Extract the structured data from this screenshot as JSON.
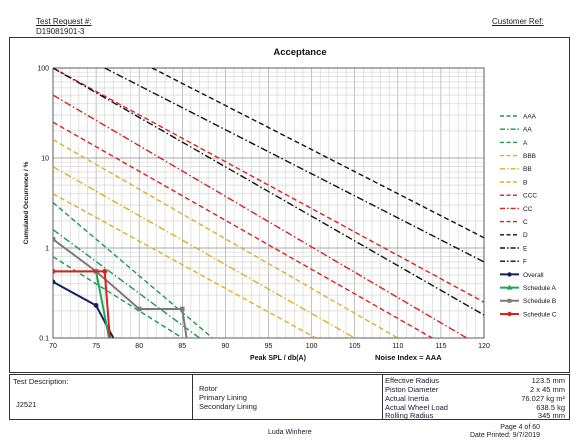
{
  "header": {
    "test_request_label": "Test Request #:",
    "test_request_value": "D19081901-3",
    "customer_ref_label": "Customer Ref:"
  },
  "chart_data": {
    "type": "line",
    "title": "Acceptance",
    "xlabel": "Peak SPL / db(A)",
    "ylabel": "Cumulated Occurrence / %",
    "xlim": [
      70,
      120
    ],
    "ylim": [
      0.1,
      100
    ],
    "y_scale": "log",
    "x_ticks": [
      70,
      75,
      80,
      85,
      90,
      95,
      100,
      105,
      110,
      115,
      120
    ],
    "y_tick_labels": [
      "100",
      "10",
      "1",
      "0.1"
    ],
    "grid": true,
    "legend_position": "right",
    "noise_index": "Noise Index = AAA",
    "limit_lines": [
      {
        "name": "AAA",
        "color": "#1a9a4a",
        "style": "dash",
        "x": [
          70,
          88.5
        ],
        "y": [
          3.2,
          0.1
        ]
      },
      {
        "name": "AA",
        "color": "#1a9a4a",
        "style": "dashdot",
        "x": [
          70,
          87
        ],
        "y": [
          1.6,
          0.1
        ]
      },
      {
        "name": "A",
        "color": "#1a9a4a",
        "style": "dash",
        "x": [
          70,
          85
        ],
        "y": [
          0.8,
          0.1
        ]
      },
      {
        "name": "BBB",
        "color": "#e0b020",
        "style": "dash",
        "x": [
          70,
          110
        ],
        "y": [
          16,
          0.1
        ]
      },
      {
        "name": "BB",
        "color": "#e0b020",
        "style": "dashdot",
        "x": [
          70,
          105
        ],
        "y": [
          8,
          0.1
        ]
      },
      {
        "name": "B",
        "color": "#e0b020",
        "style": "dash",
        "x": [
          70,
          100.5
        ],
        "y": [
          4,
          0.1
        ]
      },
      {
        "name": "CCC",
        "color": "#dd1f1f",
        "style": "dash",
        "x": [
          70,
          120
        ],
        "y": [
          100,
          0.25
        ]
      },
      {
        "name": "CC",
        "color": "#dd1f1f",
        "style": "dashdot",
        "x": [
          70,
          118
        ],
        "y": [
          50,
          0.1
        ]
      },
      {
        "name": "C",
        "color": "#dd1f1f",
        "style": "dash",
        "x": [
          70,
          114
        ],
        "y": [
          25,
          0.1
        ]
      },
      {
        "name": "D",
        "color": "#111111",
        "style": "dash",
        "x": [
          81.5,
          120
        ],
        "y": [
          100,
          1.3
        ]
      },
      {
        "name": "E",
        "color": "#111111",
        "style": "dashdot",
        "x": [
          76,
          120
        ],
        "y": [
          100,
          0.7
        ]
      },
      {
        "name": "F",
        "color": "#111111",
        "style": "dashdot",
        "x": [
          70,
          120
        ],
        "y": [
          100,
          0.18
        ]
      }
    ],
    "series": [
      {
        "name": "Overall",
        "color": "#13205a",
        "x": [
          70,
          75,
          77
        ],
        "y": [
          0.42,
          0.23,
          0.1
        ]
      },
      {
        "name": "Schedule A",
        "color": "#19a85a",
        "x": [
          70,
          75,
          76.5
        ],
        "y": [
          0.55,
          0.55,
          0.1
        ]
      },
      {
        "name": "Schedule B",
        "color": "#7a7a7a",
        "x": [
          70,
          75,
          80,
          85,
          85.5
        ],
        "y": [
          1.25,
          0.55,
          0.21,
          0.21,
          0.1
        ]
      },
      {
        "name": "Schedule C",
        "color": "#dd1f1f",
        "x": [
          70,
          76,
          76.6
        ],
        "y": [
          0.55,
          0.55,
          0.1
        ]
      }
    ]
  },
  "table": {
    "test_description_label": "Test Description:",
    "test_description_value": "J2521",
    "rotor_label": "Rotor",
    "primary_lining_label": "Primary Lining",
    "secondary_lining_label": "Secondary Lining",
    "specs": [
      {
        "label": "Effective Radius",
        "value": "123.5 mm"
      },
      {
        "label": "Piston Diameter",
        "value": "2 x 45 mm"
      },
      {
        "label": "Actual Inertia",
        "value": "76.027 kg m²"
      },
      {
        "label": "Actual Wheel Load",
        "value": "638.5 kg"
      },
      {
        "label": "Rolling Radius",
        "value": "345 mm"
      }
    ]
  },
  "footer": {
    "author": "Luda Winhere",
    "page": "Page 4 of 60",
    "date_printed": "Date Printed: 9/7/2019"
  }
}
